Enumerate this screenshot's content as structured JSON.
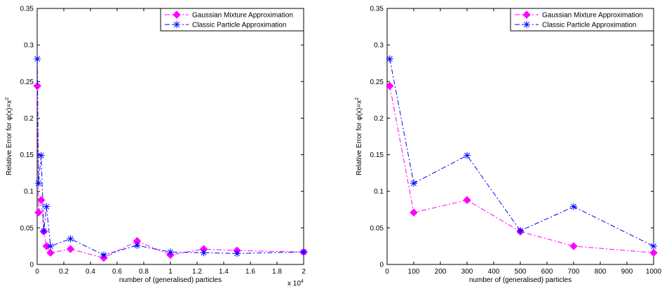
{
  "colors": {
    "gmm": "#ff00ff",
    "classic": "#0000ff",
    "axis": "#000000"
  },
  "chart_data": [
    {
      "type": "line",
      "xlabel": "number of (generalised) particles",
      "ylabel": "Relative Error for φ(x)=x",
      "ylabel_sup": "2",
      "x_multiplier": "x 10",
      "x_multiplier_exp": "4",
      "xlim": [
        0,
        20000
      ],
      "ylim": [
        0,
        0.35
      ],
      "x_ticks": [
        0,
        2000,
        4000,
        6000,
        8000,
        10000,
        12000,
        14000,
        16000,
        18000,
        20000
      ],
      "x_tick_labels": [
        "0",
        "0.2",
        "0.4",
        "0.6",
        "0.8",
        "1",
        "1.2",
        "1.4",
        "1.6",
        "1.8",
        "2"
      ],
      "y_ticks": [
        0,
        0.05,
        0.1,
        0.15,
        0.2,
        0.25,
        0.3,
        0.35
      ],
      "y_tick_labels": [
        "0",
        "0.05",
        "0.1",
        "0.15",
        "0.2",
        "0.25",
        "0.3",
        "0.35"
      ],
      "legend_position": "top-right",
      "grid": false,
      "series": [
        {
          "name": "Gaussian Mixture Approximation",
          "marker": "diamond",
          "x": [
            10,
            100,
            300,
            500,
            700,
            1000,
            2500,
            5000,
            7500,
            10000,
            12500,
            15000,
            20000
          ],
          "y": [
            0.244,
            0.071,
            0.088,
            0.045,
            0.025,
            0.016,
            0.021,
            0.009,
            0.032,
            0.013,
            0.021,
            0.019,
            0.017
          ]
        },
        {
          "name": "Classic Particle Approximation",
          "marker": "star",
          "x": [
            10,
            100,
            300,
            500,
            700,
            1000,
            2500,
            5000,
            7500,
            10000,
            12500,
            15000,
            20000
          ],
          "y": [
            0.281,
            0.111,
            0.149,
            0.046,
            0.079,
            0.025,
            0.035,
            0.013,
            0.026,
            0.017,
            0.016,
            0.015,
            0.017
          ]
        }
      ]
    },
    {
      "type": "line",
      "xlabel": "number of (generalised) particles",
      "ylabel": "Relative Error for φ(x)=x",
      "ylabel_sup": "2",
      "xlim": [
        0,
        1000
      ],
      "ylim": [
        0,
        0.35
      ],
      "x_ticks": [
        0,
        100,
        200,
        300,
        400,
        500,
        600,
        700,
        800,
        900,
        1000
      ],
      "x_tick_labels": [
        "0",
        "100",
        "200",
        "300",
        "400",
        "500",
        "600",
        "700",
        "800",
        "900",
        "1000"
      ],
      "y_ticks": [
        0,
        0.05,
        0.1,
        0.15,
        0.2,
        0.25,
        0.3,
        0.35
      ],
      "y_tick_labels": [
        "0",
        "0.05",
        "0.1",
        "0.15",
        "0.2",
        "0.25",
        "0.3",
        "0.35"
      ],
      "legend_position": "top-right",
      "grid": false,
      "series": [
        {
          "name": "Gaussian Mixture Approximation",
          "marker": "diamond",
          "x": [
            10,
            100,
            300,
            500,
            700,
            1000
          ],
          "y": [
            0.244,
            0.071,
            0.088,
            0.045,
            0.025,
            0.016
          ]
        },
        {
          "name": "Classic Particle Approximation",
          "marker": "star",
          "x": [
            10,
            100,
            300,
            500,
            700,
            1000
          ],
          "y": [
            0.281,
            0.111,
            0.149,
            0.046,
            0.079,
            0.025
          ]
        }
      ]
    }
  ]
}
